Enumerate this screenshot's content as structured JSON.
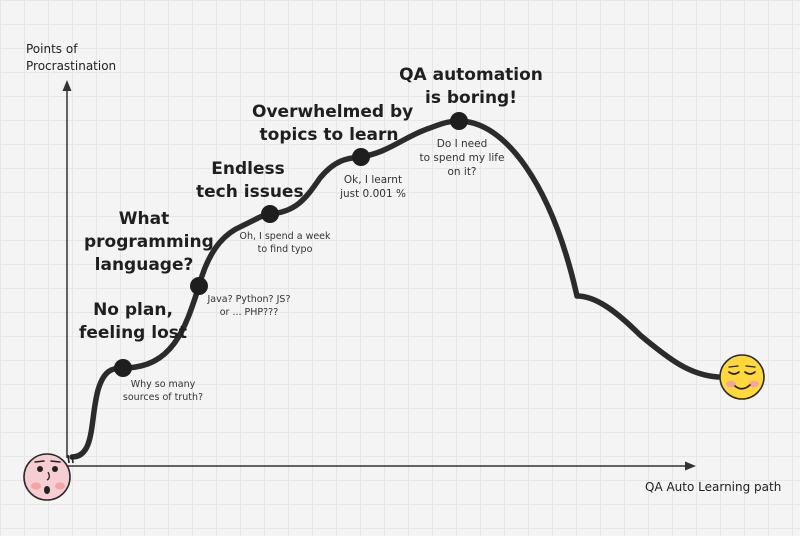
{
  "axes": {
    "y_label_line1": "Points of",
    "y_label_line2": "Procrastination",
    "x_label": "QA Auto Learning path"
  },
  "stages": [
    {
      "title_line1": "No plan,",
      "title_line2": "feeling lost",
      "note_line1": "Why so many",
      "note_line2": "sources of truth?"
    },
    {
      "title_line1": "What",
      "title_line2": "programming",
      "title_line3": "language?",
      "note_line1": "Java? Python? JS?",
      "note_line2": "or ... PHP???"
    },
    {
      "title_line1": "Endless",
      "title_line2": "tech issues",
      "note_line1": "Oh, I spend a week",
      "note_line2": "to find typo"
    },
    {
      "title_line1": "Overwhelmed by",
      "title_line2": "topics to learn",
      "note_line1": "Ok, I learnt",
      "note_line2": "just 0.001 %"
    },
    {
      "title_line1": "QA automation",
      "title_line2": "is boring!",
      "note_line1": "Do I  need",
      "note_line2": "to spend my life",
      "note_line3": "on it?"
    }
  ],
  "icons": {
    "start": "shocked-face-icon",
    "end": "content-face-icon"
  },
  "colors": {
    "curve": "#2b2b2b",
    "axis": "#333333",
    "start_face": "#f6cdd0",
    "end_face": "#ffd93b",
    "cheeks": "#f4a4a4"
  }
}
